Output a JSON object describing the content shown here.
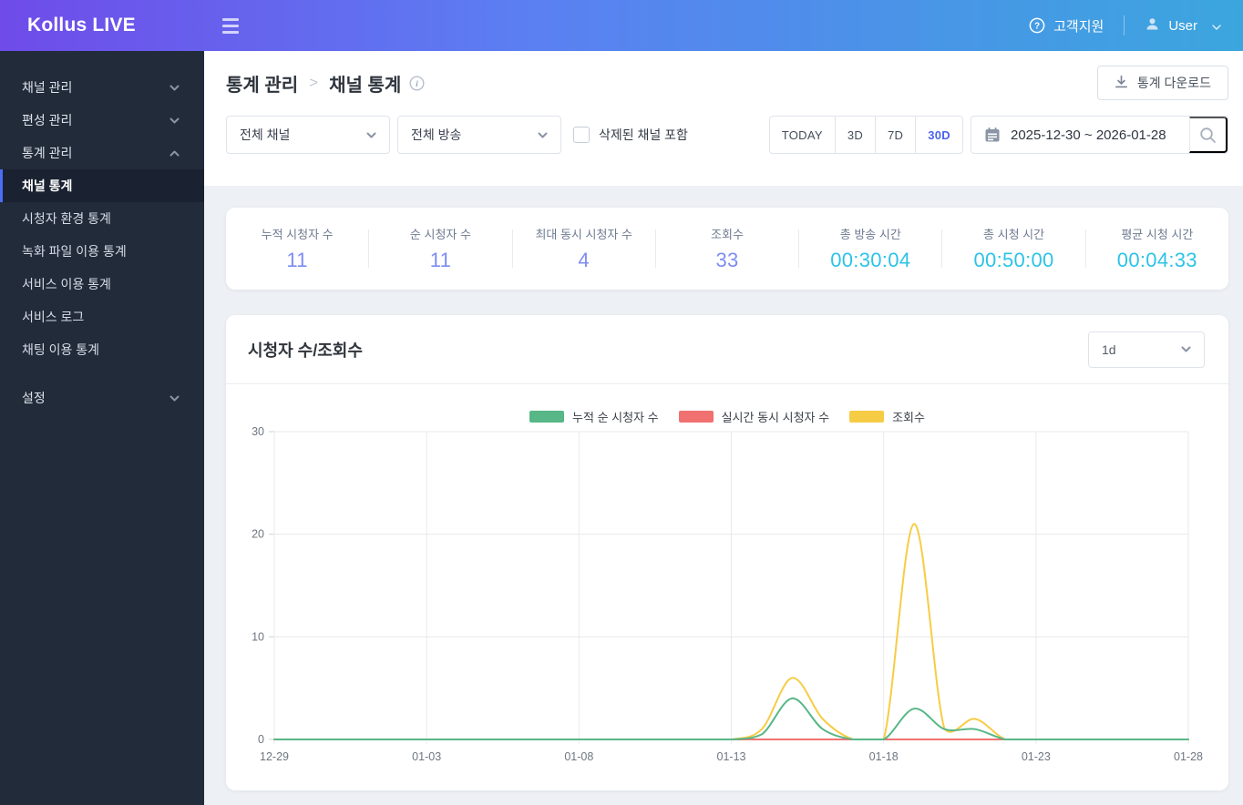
{
  "header": {
    "logo": "Kollus LIVE",
    "support_label": "고객지원",
    "user_label": "User"
  },
  "sidebar": {
    "groups": [
      {
        "label": "채널 관리",
        "state": "collapsed"
      },
      {
        "label": "편성 관리",
        "state": "collapsed"
      },
      {
        "label": "통계 관리",
        "state": "expanded"
      }
    ],
    "submenu": [
      "채널 통계",
      "시청자 환경 통계",
      "녹화 파일 이용 통계",
      "서비스 이용 통계",
      "서비스 로그",
      "채팅 이용 통계"
    ],
    "active_item": "채널 통계",
    "settings_label": "설정"
  },
  "breadcrumb": {
    "parent": "통계 관리",
    "current": "채널 통계"
  },
  "toolbar": {
    "download_label": "통계 다운로드"
  },
  "filters": {
    "channel_select": "전체 채널",
    "broadcast_select": "전체 방송",
    "deleted_checkbox_label": "삭제된 채널 포함",
    "deleted_checkbox_checked": false,
    "range_buttons": [
      "TODAY",
      "3D",
      "7D",
      "30D"
    ],
    "active_range": "30D",
    "date_range": "2025-12-30 ~ 2026-01-28"
  },
  "stats": {
    "items": [
      {
        "label": "누적 시청자 수",
        "value": "11",
        "kind": "count"
      },
      {
        "label": "순 시청자 수",
        "value": "11",
        "kind": "count"
      },
      {
        "label": "최대 동시 시청자 수",
        "value": "4",
        "kind": "count"
      },
      {
        "label": "조회수",
        "value": "33",
        "kind": "count"
      },
      {
        "label": "총 방송 시간",
        "value": "00:30:04",
        "kind": "time"
      },
      {
        "label": "총 시청 시간",
        "value": "00:50:00",
        "kind": "time"
      },
      {
        "label": "평균 시청 시간",
        "value": "00:04:33",
        "kind": "time"
      }
    ]
  },
  "chart_section": {
    "title": "시청자 수/조회수",
    "interval_select": "1d"
  },
  "colors": {
    "accent_blue": "#4b63f0",
    "count_value": "#7c8df2",
    "time_value": "#2cc3e7",
    "sidebar_active_border": "#4c6ef5",
    "series_green": "#57b787",
    "series_red": "#f17171",
    "series_yellow": "#f7cc45"
  },
  "chart_data": {
    "type": "line",
    "title": "시청자 수/조회수",
    "x": [
      "12-29",
      "12-30",
      "12-31",
      "01-01",
      "01-02",
      "01-03",
      "01-04",
      "01-05",
      "01-06",
      "01-07",
      "01-08",
      "01-09",
      "01-10",
      "01-11",
      "01-12",
      "01-13",
      "01-14",
      "01-15",
      "01-16",
      "01-17",
      "01-18",
      "01-19",
      "01-20",
      "01-21",
      "01-22",
      "01-23",
      "01-24",
      "01-25",
      "01-26",
      "01-27",
      "01-28"
    ],
    "x_tick_every": 5,
    "yticks": [
      0,
      10,
      20,
      30
    ],
    "ylim": [
      0,
      30
    ],
    "grid": true,
    "legend_position": "top",
    "series": [
      {
        "name": "누적 순 시청자 수",
        "color": "#57b787",
        "values": [
          0,
          0,
          0,
          0,
          0,
          0,
          0,
          0,
          0,
          0,
          0,
          0,
          0,
          0,
          0,
          0,
          0.5,
          4,
          1,
          0,
          0,
          3,
          1,
          1,
          0,
          0,
          0,
          0,
          0,
          0,
          0
        ]
      },
      {
        "name": "실시간 동시 시청자 수",
        "color": "#f17171",
        "values": [
          0,
          0,
          0,
          0,
          0,
          0,
          0,
          0,
          0,
          0,
          0,
          0,
          0,
          0,
          0,
          0,
          0,
          0,
          0,
          0,
          0,
          0,
          0,
          0,
          0,
          0,
          0,
          0,
          0,
          0,
          0
        ]
      },
      {
        "name": "조회수",
        "color": "#f7cc45",
        "values": [
          0,
          0,
          0,
          0,
          0,
          0,
          0,
          0,
          0,
          0,
          0,
          0,
          0,
          0,
          0,
          0,
          1,
          6,
          2,
          0,
          0,
          21,
          1,
          2,
          0,
          0,
          0,
          0,
          0,
          0,
          0
        ]
      }
    ]
  }
}
